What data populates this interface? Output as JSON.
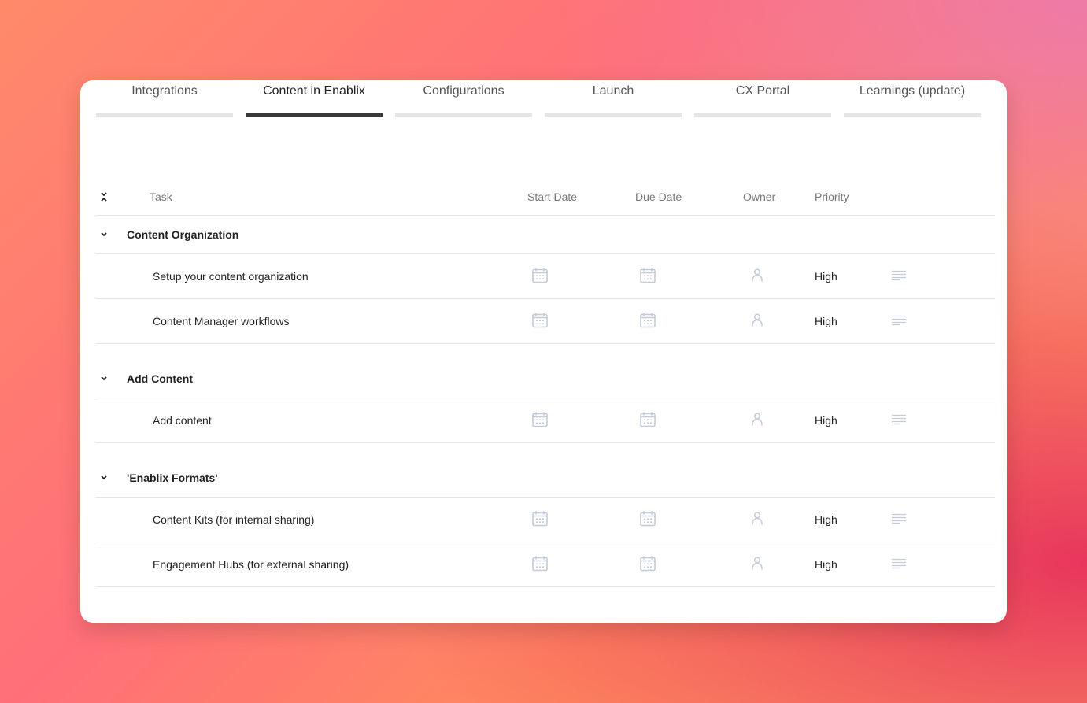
{
  "tabs": [
    {
      "label": "Integrations"
    },
    {
      "label": "Content in Enablix",
      "active": true
    },
    {
      "label": "Configurations"
    },
    {
      "label": "Launch"
    },
    {
      "label": "CX Portal"
    },
    {
      "label": "Learnings (update)"
    }
  ],
  "columns": {
    "task": "Task",
    "start": "Start Date",
    "due": "Due Date",
    "owner": "Owner",
    "priority": "Priority"
  },
  "groups": [
    {
      "title": "Content Organization",
      "tasks": [
        {
          "name": "Setup your content organization",
          "priority": "High"
        },
        {
          "name": "Content Manager workflows",
          "priority": "High"
        }
      ]
    },
    {
      "title": "Add Content",
      "tasks": [
        {
          "name": "Add content",
          "priority": "High"
        }
      ]
    },
    {
      "title": "'Enablix Formats'",
      "tasks": [
        {
          "name": "Content Kits (for internal sharing)",
          "priority": "High"
        },
        {
          "name": "Engagement Hubs (for external sharing)",
          "priority": "High"
        }
      ]
    }
  ],
  "icons": {
    "start": "calendar-icon",
    "due": "calendar-icon",
    "owner": "user-icon",
    "notes": "lines-icon"
  },
  "colors": {
    "active_tab": "#3a3a3a",
    "icon": "#c3cbd9"
  }
}
